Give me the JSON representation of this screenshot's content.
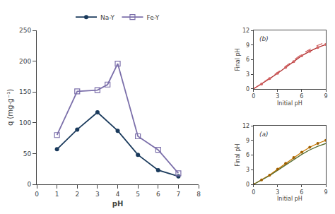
{
  "chart_data": [
    {
      "type": "line",
      "xlabel": "pH",
      "ylabel": "q (mg·g⁻¹)",
      "xlim": [
        0,
        8
      ],
      "ylim": [
        0,
        250
      ],
      "xticks": [
        0,
        1,
        2,
        3,
        4,
        5,
        6,
        7,
        8
      ],
      "yticks": [
        0,
        50,
        100,
        150,
        200,
        250
      ],
      "grid": false,
      "legend": "top",
      "series": [
        {
          "name": "Na-Y",
          "color": "#1a3a5c",
          "marker": "circle",
          "x": [
            1,
            2,
            3,
            4,
            5,
            6,
            7
          ],
          "values": [
            57,
            89,
            117,
            87,
            48,
            23,
            13
          ]
        },
        {
          "name": "Fe-Y",
          "color": "#7b6faa",
          "marker": "square-open",
          "x": [
            1,
            2,
            3,
            3.5,
            4,
            5,
            6,
            7
          ],
          "values": [
            80,
            151,
            153,
            162,
            196,
            78,
            56,
            18
          ]
        }
      ]
    },
    {
      "type": "line",
      "xlabel": "Initial pH",
      "ylabel": "Final pH",
      "xlim": [
        0,
        9
      ],
      "ylim": [
        0,
        12
      ],
      "xticks": [
        0,
        3,
        6,
        9
      ],
      "yticks": [
        0,
        3,
        6,
        9,
        12
      ],
      "grid": false,
      "annotations": [
        "(b)"
      ],
      "series": [
        {
          "color": "#b03030",
          "line_style": "solid",
          "x": [
            0,
            1,
            2,
            3,
            4,
            5,
            6,
            7,
            8,
            9
          ],
          "values": [
            0,
            1.0,
            2.1,
            3.2,
            4.4,
            5.6,
            6.8,
            7.7,
            8.5,
            9.1
          ]
        },
        {
          "color": "#d06060",
          "line_style": "dashed",
          "x": [
            0,
            1,
            2,
            3,
            4,
            5,
            6,
            7,
            8,
            9
          ],
          "values": [
            0,
            1.05,
            2.205,
            3.36,
            4.62,
            5.88,
            7.14,
            8.085,
            8.925,
            9.555
          ]
        },
        {
          "type": "scatter",
          "color": "#d06060",
          "x": [
            0,
            1,
            2,
            3,
            4,
            5,
            6,
            7,
            8,
            9
          ],
          "values": [
            0,
            1.0,
            2.1,
            3.2,
            4.4,
            5.6,
            6.8,
            7.7,
            8.5,
            9.1
          ]
        }
      ]
    },
    {
      "type": "line",
      "xlabel": "Initial pH",
      "ylabel": "Final pH",
      "xlim": [
        0,
        9
      ],
      "ylim": [
        0,
        12
      ],
      "xticks": [
        0,
        3,
        6,
        9
      ],
      "yticks": [
        0,
        3,
        6,
        9,
        12
      ],
      "grid": false,
      "annotations": [
        "(a)"
      ],
      "series": [
        {
          "color": "#c87800",
          "line_style": "solid",
          "x": [
            0,
            1,
            2,
            3,
            4,
            5,
            6,
            7,
            8,
            9
          ],
          "values": [
            0,
            0.9,
            1.9,
            3.1,
            4.3,
            5.5,
            6.6,
            7.6,
            8.4,
            9.0
          ]
        },
        {
          "color": "#556b2f",
          "line_style": "solid",
          "x": [
            0,
            1,
            2,
            3,
            4,
            5,
            6,
            7,
            8,
            9
          ],
          "values": [
            0,
            0.837,
            1.767,
            2.883,
            3.999,
            5.115,
            6.138,
            7.068,
            7.812,
            8.37
          ]
        },
        {
          "type": "scatter",
          "color": "#a06000",
          "x": [
            0,
            1,
            2,
            3,
            4,
            5,
            6,
            7,
            8,
            9
          ],
          "values": [
            0,
            0.9,
            1.9,
            3.1,
            4.3,
            5.5,
            6.6,
            7.6,
            8.4,
            9.0
          ]
        }
      ]
    }
  ]
}
